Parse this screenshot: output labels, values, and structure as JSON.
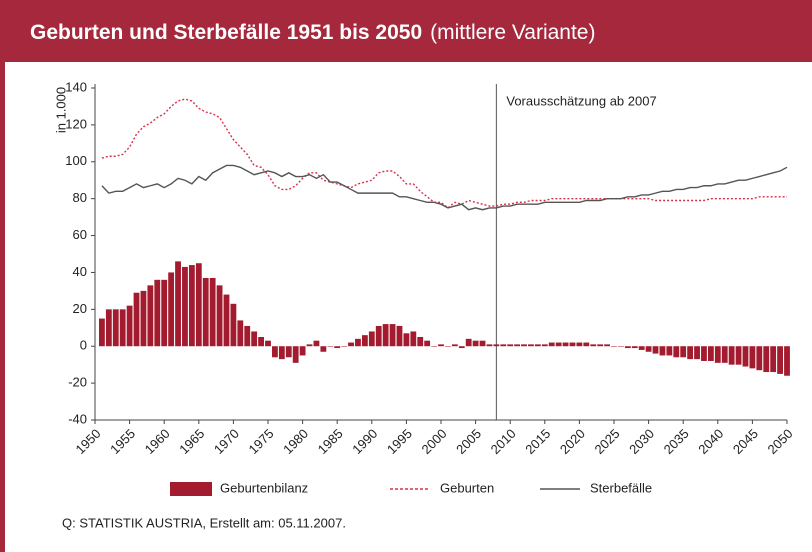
{
  "chart_data": {
    "type": "combo",
    "title": "Geburten und Sterbefälle 1951 bis 2050",
    "subtitle": "(mittlere Variante)",
    "y_label": "in 1.000",
    "source": "Q: STATISTIK AUSTRIA, Erstellt am: 05.11.2007.",
    "annotations": [
      {
        "text": "Vorausschätzung ab 2007",
        "x": 2008
      }
    ],
    "legend": "bottom",
    "xlim": [
      1950,
      2050
    ],
    "xticks": [
      1950,
      1955,
      1960,
      1965,
      1970,
      1975,
      1980,
      1985,
      1990,
      1995,
      2000,
      2005,
      2010,
      2015,
      2020,
      2025,
      2030,
      2035,
      2040,
      2045,
      2050
    ],
    "ylim": [
      -40,
      140
    ],
    "yticks": [
      -40,
      -20,
      0,
      20,
      40,
      60,
      80,
      100,
      120,
      140
    ],
    "x": [
      1951,
      1952,
      1953,
      1954,
      1955,
      1956,
      1957,
      1958,
      1959,
      1960,
      1961,
      1962,
      1963,
      1964,
      1965,
      1966,
      1967,
      1968,
      1969,
      1970,
      1971,
      1972,
      1973,
      1974,
      1975,
      1976,
      1977,
      1978,
      1979,
      1980,
      1981,
      1982,
      1983,
      1984,
      1985,
      1986,
      1987,
      1988,
      1989,
      1990,
      1991,
      1992,
      1993,
      1994,
      1995,
      1996,
      1997,
      1998,
      1999,
      2000,
      2001,
      2002,
      2003,
      2004,
      2005,
      2006,
      2007,
      2008,
      2009,
      2010,
      2011,
      2012,
      2013,
      2014,
      2015,
      2016,
      2017,
      2018,
      2019,
      2020,
      2021,
      2022,
      2023,
      2024,
      2025,
      2026,
      2027,
      2028,
      2029,
      2030,
      2031,
      2032,
      2033,
      2034,
      2035,
      2036,
      2037,
      2038,
      2039,
      2040,
      2041,
      2042,
      2043,
      2044,
      2045,
      2046,
      2047,
      2048,
      2049,
      2050
    ],
    "series": [
      {
        "name": "Geburtenbilanz",
        "type": "bar",
        "color": "#a31b2e",
        "values": [
          15,
          20,
          20,
          20,
          22,
          29,
          30,
          33,
          36,
          36,
          40,
          46,
          43,
          44,
          45,
          37,
          37,
          33,
          28,
          23,
          14,
          11,
          8,
          5,
          3,
          -6,
          -7,
          -6,
          -9,
          -5,
          1,
          3,
          -3,
          0,
          -1,
          0,
          2,
          4,
          6,
          8,
          11,
          12,
          12,
          11,
          7,
          8,
          5,
          3,
          0,
          1,
          0,
          1,
          -1,
          4,
          3,
          3,
          1,
          1,
          1,
          1,
          1,
          1,
          1,
          1,
          1,
          2,
          2,
          2,
          2,
          2,
          2,
          1,
          1,
          1,
          0,
          0,
          -1,
          -1,
          -2,
          -3,
          -4,
          -5,
          -5,
          -6,
          -6,
          -7,
          -7,
          -8,
          -8,
          -9,
          -9,
          -10,
          -10,
          -11,
          -12,
          -13,
          -14,
          -14,
          -15,
          -16
        ]
      },
      {
        "name": "Geburten",
        "type": "line",
        "dash": "dotted",
        "color": "#d9304a",
        "values": [
          102,
          103,
          103,
          104,
          108,
          115,
          119,
          121,
          124,
          126,
          130,
          133,
          134,
          133,
          129,
          127,
          126,
          124,
          118,
          112,
          108,
          104,
          98,
          97,
          93,
          87,
          85,
          85,
          87,
          91,
          94,
          94,
          90,
          89,
          88,
          87,
          86,
          88,
          89,
          90,
          94,
          95,
          95,
          92,
          88,
          88,
          84,
          81,
          78,
          78,
          75,
          78,
          77,
          79,
          78,
          77,
          76,
          76,
          77,
          77,
          78,
          78,
          79,
          79,
          79,
          80,
          80,
          80,
          80,
          80,
          80,
          80,
          80,
          80,
          80,
          80,
          80,
          80,
          80,
          80,
          79,
          79,
          79,
          79,
          79,
          79,
          79,
          79,
          80,
          80,
          80,
          80,
          80,
          80,
          80,
          81,
          81,
          81,
          81,
          81
        ]
      },
      {
        "name": "Sterbefälle",
        "type": "line",
        "dash": "solid",
        "color": "#555555",
        "values": [
          87,
          83,
          84,
          84,
          86,
          88,
          86,
          87,
          88,
          86,
          88,
          91,
          90,
          88,
          92,
          90,
          94,
          96,
          98,
          98,
          97,
          95,
          93,
          94,
          95,
          94,
          92,
          94,
          92,
          92,
          93,
          91,
          93,
          89,
          89,
          87,
          85,
          83,
          83,
          83,
          83,
          83,
          83,
          81,
          81,
          80,
          79,
          78,
          78,
          77,
          75,
          76,
          77,
          74,
          75,
          74,
          75,
          75,
          76,
          76,
          77,
          77,
          77,
          77,
          78,
          78,
          78,
          78,
          78,
          78,
          79,
          79,
          79,
          80,
          80,
          80,
          81,
          81,
          82,
          82,
          83,
          84,
          84,
          85,
          85,
          86,
          86,
          87,
          87,
          88,
          88,
          89,
          90,
          90,
          91,
          92,
          93,
          94,
          95,
          97
        ]
      }
    ]
  }
}
